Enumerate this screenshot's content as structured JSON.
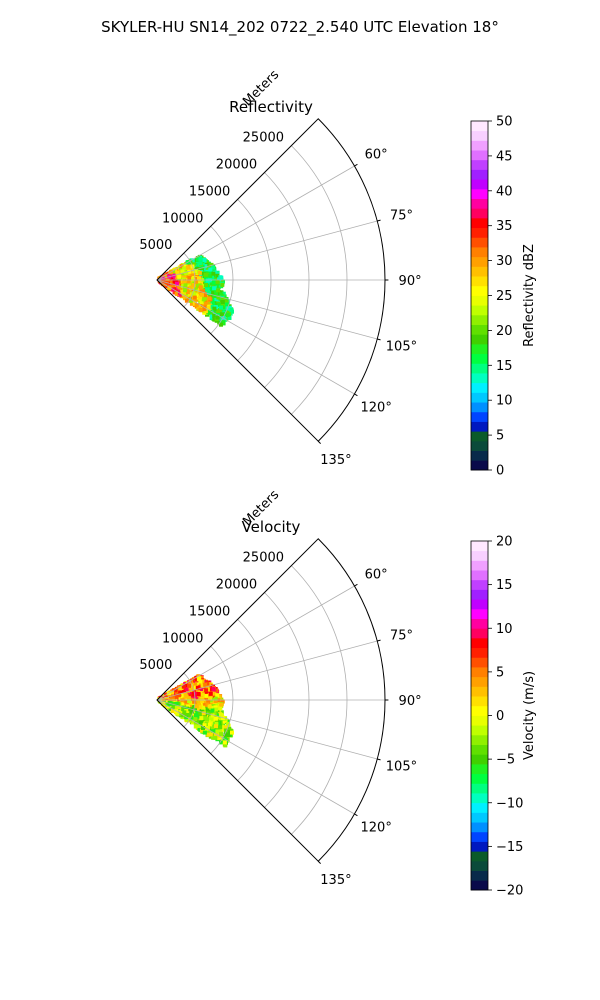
{
  "figure": {
    "title": "SKYLER-HU  SN14_202  0722_2.540 UTC Elevation 18°"
  },
  "chart_data": [
    {
      "type": "polar-sector",
      "title": "Reflectivity",
      "radial_label": "Meters",
      "radial_ticks": [
        5000,
        10000,
        15000,
        20000,
        25000
      ],
      "radial_tick_labels": [
        "5000",
        "10000",
        "15000",
        "20000",
        "25000"
      ],
      "rmax": 30000,
      "theta_range_deg": [
        45,
        135
      ],
      "theta_ticks": [
        60,
        75,
        90,
        105,
        120,
        135
      ],
      "theta_tick_labels": [
        "60°",
        "75°",
        "90°",
        "105°",
        "120°",
        "135°"
      ],
      "grid": true,
      "colorbar": {
        "label": "Reflectivity dBZ",
        "range": [
          0,
          50
        ],
        "ticks": [
          0,
          5,
          10,
          15,
          20,
          25,
          30,
          35,
          40,
          45,
          50
        ],
        "tick_labels": [
          "0",
          "5",
          "10",
          "15",
          "20",
          "25",
          "30",
          "35",
          "40",
          "45",
          "50"
        ],
        "colors": [
          "#0a0a4a",
          "#082a4a",
          "#0a4a3a",
          "#0a5a2a",
          "#0018c0",
          "#0044ff",
          "#0090ff",
          "#00c8ff",
          "#00f0ff",
          "#00ffc0",
          "#00ff80",
          "#00ff40",
          "#20f020",
          "#40d000",
          "#60e000",
          "#90f000",
          "#c0ff00",
          "#e8ff00",
          "#ffff00",
          "#ffe000",
          "#ffc000",
          "#ffa000",
          "#ff8000",
          "#ff5000",
          "#ff2000",
          "#ff0000",
          "#ff0060",
          "#ff00a0",
          "#ff00ff",
          "#c000ff",
          "#a020ff",
          "#c040ff",
          "#e070ff",
          "#f0a0ff",
          "#f8d0ff",
          "#ffe8ff"
        ]
      }
    },
    {
      "type": "polar-sector",
      "title": "Velocity",
      "radial_label": "Meters",
      "radial_ticks": [
        5000,
        10000,
        15000,
        20000,
        25000
      ],
      "radial_tick_labels": [
        "5000",
        "10000",
        "15000",
        "20000",
        "25000"
      ],
      "rmax": 30000,
      "theta_range_deg": [
        45,
        135
      ],
      "theta_ticks": [
        60,
        75,
        90,
        105,
        120,
        135
      ],
      "theta_tick_labels": [
        "60°",
        "75°",
        "90°",
        "105°",
        "120°",
        "135°"
      ],
      "grid": true,
      "colorbar": {
        "label": "Velocity (m/s)",
        "range": [
          -20,
          20
        ],
        "ticks": [
          -20,
          -15,
          -10,
          -5,
          0,
          5,
          10,
          15,
          20
        ],
        "tick_labels": [
          "−20",
          "−15",
          "−10",
          "−5",
          "0",
          "5",
          "10",
          "15",
          "20"
        ],
        "colors": [
          "#0a0a4a",
          "#082a4a",
          "#0a4a3a",
          "#0a5a2a",
          "#0018c0",
          "#0044ff",
          "#0090ff",
          "#00c8ff",
          "#00f0ff",
          "#00ffc0",
          "#00ff80",
          "#00ff40",
          "#20f020",
          "#40d000",
          "#60e000",
          "#90f000",
          "#c0ff00",
          "#e8ff00",
          "#ffff00",
          "#ffe000",
          "#ffc000",
          "#ffa000",
          "#ff8000",
          "#ff5000",
          "#ff2000",
          "#ff0000",
          "#ff0060",
          "#ff00a0",
          "#ff00ff",
          "#c000ff",
          "#a020ff",
          "#c040ff",
          "#e070ff",
          "#f0a0ff",
          "#f8d0ff",
          "#ffe8ff"
        ]
      }
    }
  ]
}
